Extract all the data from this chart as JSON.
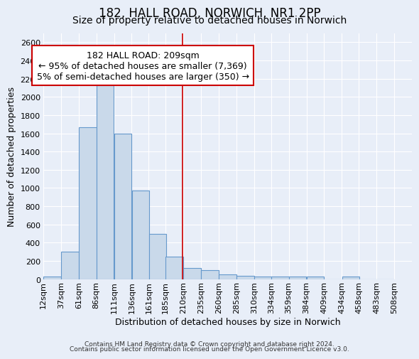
{
  "title": "182, HALL ROAD, NORWICH, NR1 2PP",
  "subtitle": "Size of property relative to detached houses in Norwich",
  "xlabel": "Distribution of detached houses by size in Norwich",
  "ylabel": "Number of detached properties",
  "bar_color": "#c9d9ea",
  "bar_edge_color": "#6699cc",
  "background_color": "#e8eef8",
  "grid_color": "white",
  "bins_left_edges": [
    12,
    37,
    62,
    87,
    112,
    137,
    161,
    185,
    210,
    235,
    260,
    285,
    310,
    334,
    359,
    384,
    409,
    434,
    458,
    483
  ],
  "bin_labels": [
    "12sqm",
    "37sqm",
    "61sqm",
    "86sqm",
    "111sqm",
    "136sqm",
    "161sqm",
    "185sqm",
    "210sqm",
    "235sqm",
    "260sqm",
    "285sqm",
    "310sqm",
    "334sqm",
    "359sqm",
    "384sqm",
    "409sqm",
    "434sqm",
    "458sqm",
    "483sqm",
    "508sqm"
  ],
  "bar_heights": [
    25,
    300,
    1670,
    2130,
    1600,
    975,
    500,
    245,
    120,
    100,
    50,
    35,
    30,
    25,
    25,
    25,
    0,
    25,
    0,
    0
  ],
  "bin_width": 25,
  "vline_x": 209,
  "vline_color": "#cc0000",
  "annotation_line1": "182 HALL ROAD: 209sqm",
  "annotation_line2": "← 95% of detached houses are smaller (7,369)",
  "annotation_line3": "5% of semi-detached houses are larger (350) →",
  "annotation_box_color": "white",
  "annotation_box_edge_color": "#cc0000",
  "ylim": [
    0,
    2700
  ],
  "xlim": [
    12,
    533
  ],
  "yticks": [
    0,
    200,
    400,
    600,
    800,
    1000,
    1200,
    1400,
    1600,
    1800,
    2000,
    2200,
    2400,
    2600
  ],
  "footer_line1": "Contains HM Land Registry data © Crown copyright and database right 2024.",
  "footer_line2": "Contains public sector information licensed under the Open Government Licence v3.0.",
  "title_fontsize": 12,
  "subtitle_fontsize": 10,
  "axis_label_fontsize": 9,
  "tick_fontsize": 8,
  "annotation_fontsize": 9,
  "footer_fontsize": 6.5
}
